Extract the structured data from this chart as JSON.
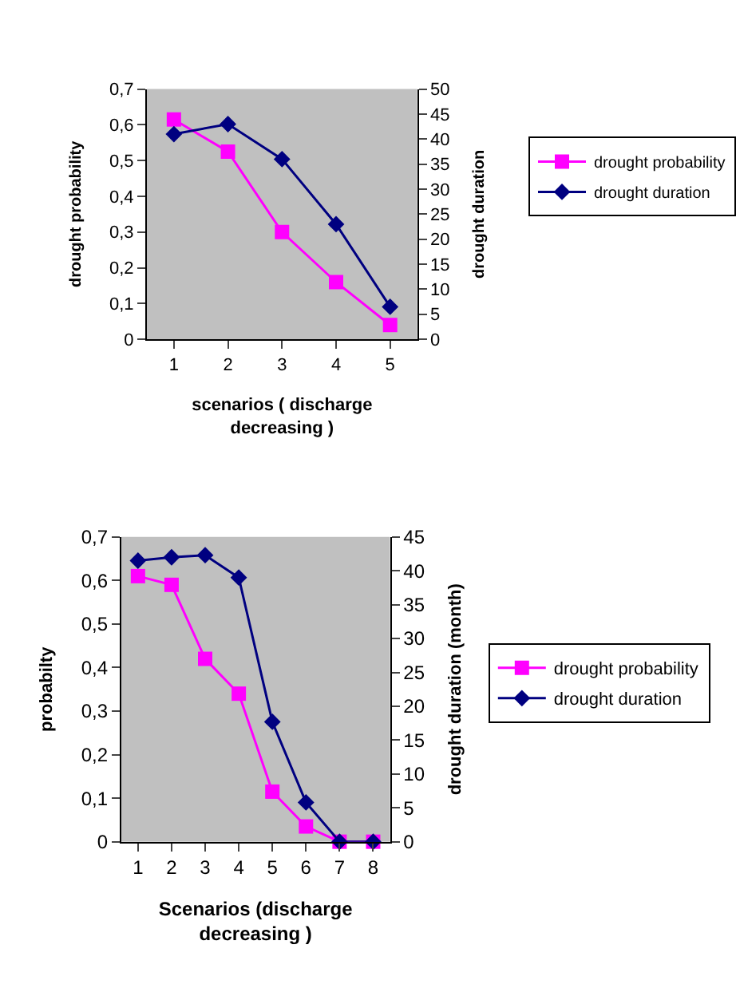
{
  "chart_data": [
    {
      "type": "line",
      "xlabel": "scenarios ( discharge decreasing )",
      "ylabel": "drought probability",
      "y2label": "drought duration",
      "categories": [
        "1",
        "2",
        "3",
        "4",
        "5"
      ],
      "series": [
        {
          "name": "drought probability",
          "color": "#ff00ff",
          "marker": "square",
          "values": [
            0.615,
            0.525,
            0.3,
            0.16,
            0.04
          ]
        },
        {
          "name": "drought duration",
          "color": "#000080",
          "marker": "diamond",
          "axis": "y2",
          "values": [
            41,
            43,
            36,
            23,
            6.5
          ]
        }
      ],
      "ylim": [
        0,
        0.7
      ],
      "yticks": [
        0,
        {
          "value": 0.1,
          "label": "0,1"
        },
        {
          "value": 0.2,
          "label": "0,2"
        },
        {
          "value": 0.3,
          "label": "0,3"
        },
        {
          "value": 0.4,
          "label": "0,4"
        },
        {
          "value": 0.5,
          "label": "0,5"
        },
        {
          "value": 0.6,
          "label": "0,6"
        },
        {
          "value": 0.7,
          "label": "0,7"
        }
      ],
      "y2lim": [
        0,
        50
      ],
      "y2ticks": [
        0,
        5,
        10,
        15,
        20,
        25,
        30,
        35,
        40,
        45,
        50
      ],
      "grid": false,
      "legend": "right"
    },
    {
      "type": "line",
      "xlabel": "Scenarios (discharge decreasing )",
      "ylabel": "probabilty",
      "y2label": "drought duration (month)",
      "categories": [
        "1",
        "2",
        "3",
        "4",
        "5",
        "6",
        "7",
        "8"
      ],
      "series": [
        {
          "name": "drought probability",
          "color": "#ff00ff",
          "marker": "square",
          "values": [
            0.61,
            0.59,
            0.42,
            0.34,
            0.115,
            0.035,
            0,
            0
          ]
        },
        {
          "name": "drought duration",
          "color": "#000080",
          "marker": "diamond",
          "axis": "y2",
          "values": [
            41.5,
            42,
            42.3,
            39,
            17.7,
            5.8,
            0,
            0
          ]
        }
      ],
      "ylim": [
        0,
        0.7
      ],
      "yticks": [
        0,
        {
          "value": 0.1,
          "label": "0,1"
        },
        {
          "value": 0.2,
          "label": "0,2"
        },
        {
          "value": 0.3,
          "label": "0,3"
        },
        {
          "value": 0.4,
          "label": "0,4"
        },
        {
          "value": 0.5,
          "label": "0,5"
        },
        {
          "value": 0.6,
          "label": "0,6"
        },
        {
          "value": 0.7,
          "label": "0,7"
        }
      ],
      "y2lim": [
        0,
        45
      ],
      "y2ticks": [
        0,
        5,
        10,
        15,
        20,
        25,
        30,
        35,
        40,
        45
      ],
      "grid": false,
      "legend": "right"
    }
  ]
}
